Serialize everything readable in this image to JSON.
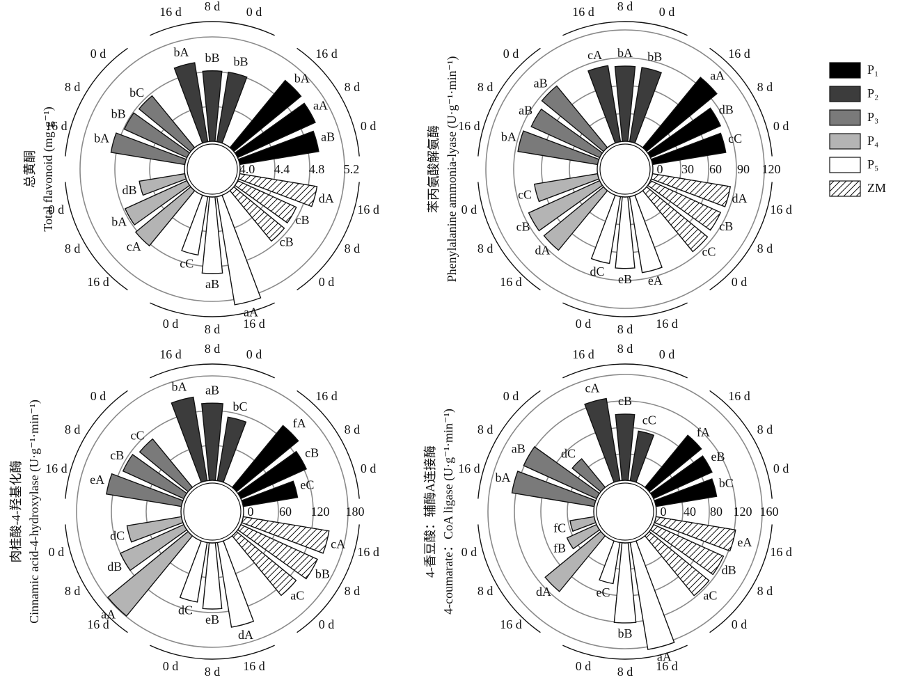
{
  "legend": [
    {
      "name": "P₁",
      "color": "#000000"
    },
    {
      "name": "P₂",
      "color": "#3c3c3c"
    },
    {
      "name": "P₃",
      "color": "#7a7a7a"
    },
    {
      "name": "P₄",
      "color": "#b4b4b4"
    },
    {
      "name": "P₅",
      "color": "#ffffff"
    },
    {
      "name": "ZM",
      "color": "#ffffff",
      "hatch": true
    }
  ],
  "chart_data": [
    {
      "type": "polar_bar",
      "ylabel": [
        "总黄酮",
        "Total flavonoid (mg·g⁻¹)"
      ],
      "categories": [
        "0 d",
        "8 d",
        "16 d"
      ],
      "ylim": [
        4.0,
        5.2
      ],
      "yticks": [
        {
          "value": 4.0,
          "label": "4.0"
        },
        4.4,
        4.8,
        5.2
      ],
      "grid": true,
      "series": [
        {
          "values": [
            4.92,
            4.98,
            5.0
          ],
          "letters": [
            "aB",
            "aA",
            "bA"
          ]
        },
        {
          "values": [
            4.81,
            4.81,
            4.92
          ],
          "letters": [
            "bB",
            "bB",
            "bA"
          ]
        },
        {
          "values": [
            4.77,
            4.79,
            4.86
          ],
          "letters": [
            "bC",
            "bB",
            "bA"
          ]
        },
        {
          "values": [
            4.53,
            4.78,
            4.82
          ],
          "letters": [
            "dB",
            "bA",
            "cA"
          ]
        },
        {
          "values": [
            4.68,
            4.88,
            5.26
          ],
          "letters": [
            "cC",
            "aB",
            "aA"
          ]
        },
        {
          "values": [
            4.75,
            4.74,
            4.9
          ],
          "letters": [
            "cB",
            "cB",
            "dA"
          ]
        }
      ]
    },
    {
      "type": "polar_bar",
      "ylabel": [
        "苯丙氨酸解氨酶",
        "Phenylalanine ammonia-lyase (U·g⁻¹·min⁻¹)"
      ],
      "categories": [
        "0 d",
        "8 d",
        "16 d"
      ],
      "ylim": [
        0,
        120
      ],
      "yticks": [
        0,
        30,
        60,
        90,
        120
      ],
      "grid": true,
      "series": [
        {
          "values": [
            80,
            83,
            98
          ],
          "letters": [
            "cC",
            "dB",
            "aA"
          ]
        },
        {
          "values": [
            81,
            81,
            83
          ],
          "letters": [
            "bB",
            "bA",
            "cA"
          ]
        },
        {
          "values": [
            86,
            81,
            87
          ],
          "letters": [
            "aB",
            "aB",
            "bA"
          ]
        },
        {
          "values": [
            69,
            84,
            83
          ],
          "letters": [
            "cC",
            "cB",
            "dA"
          ]
        },
        {
          "values": [
            73,
            77,
            83
          ],
          "letters": [
            "dC",
            "eB",
            "eA"
          ]
        },
        {
          "values": [
            85,
            83,
            85
          ],
          "letters": [
            "cC",
            "cB",
            "dA"
          ]
        }
      ]
    },
    {
      "type": "polar_bar",
      "ylabel": [
        "肉桂酸-4-羟基化酶",
        "Cinnamic acid-4-hydroxylase (U·g⁻¹·min⁻¹)"
      ],
      "categories": [
        "0 d",
        "8 d",
        "16 d"
      ],
      "ylim": [
        0,
        180
      ],
      "yticks": [
        0,
        60,
        120,
        180
      ],
      "grid": true,
      "series": [
        {
          "values": [
            95,
            124,
            138
          ],
          "letters": [
            "eC",
            "cB",
            "fA"
          ]
        },
        {
          "values": [
            111,
            133,
            146
          ],
          "letters": [
            "bC",
            "aB",
            "bA"
          ]
        },
        {
          "values": [
            108,
            115,
            131
          ],
          "letters": [
            "cC",
            "cB",
            "eA"
          ]
        },
        {
          "values": [
            95,
            120,
            179
          ],
          "letters": [
            "dC",
            "dB",
            "aA"
          ]
        },
        {
          "values": [
            104,
            114,
            148
          ],
          "letters": [
            "dC",
            "eB",
            "dA"
          ]
        },
        {
          "values": [
            133,
            145,
            150
          ],
          "letters": [
            "aC",
            "bB",
            "cA"
          ]
        }
      ]
    },
    {
      "type": "polar_bar",
      "ylabel": [
        "4-香豆酸：辅酶A连接酶",
        "4-coumarate：CoA ligase (U·g⁻¹·min⁻¹)"
      ],
      "categories": [
        "0 d",
        "8 d",
        "16 d"
      ],
      "ylim": [
        0,
        160
      ],
      "yticks": [
        0,
        40,
        80,
        120,
        160
      ],
      "grid": true,
      "series": [
        {
          "values": [
            93,
            97,
            102
          ],
          "letters": [
            "bC",
            "eB",
            "fA"
          ]
        },
        {
          "values": [
            76,
            100,
            126
          ],
          "letters": [
            "cC",
            "cB",
            "cA"
          ]
        },
        {
          "values": [
            56,
            121,
            126
          ],
          "letters": [
            "dC",
            "aB",
            "bA"
          ]
        },
        {
          "values": [
            37,
            49,
            109
          ],
          "letters": [
            "fC",
            "fB",
            "dA"
          ]
        },
        {
          "values": [
            63,
            121,
            164
          ],
          "letters": [
            "eC",
            "bB",
            "aA"
          ]
        },
        {
          "values": [
            117,
            116,
            122
          ],
          "letters": [
            "aC",
            "dB",
            "eA"
          ]
        }
      ]
    }
  ]
}
